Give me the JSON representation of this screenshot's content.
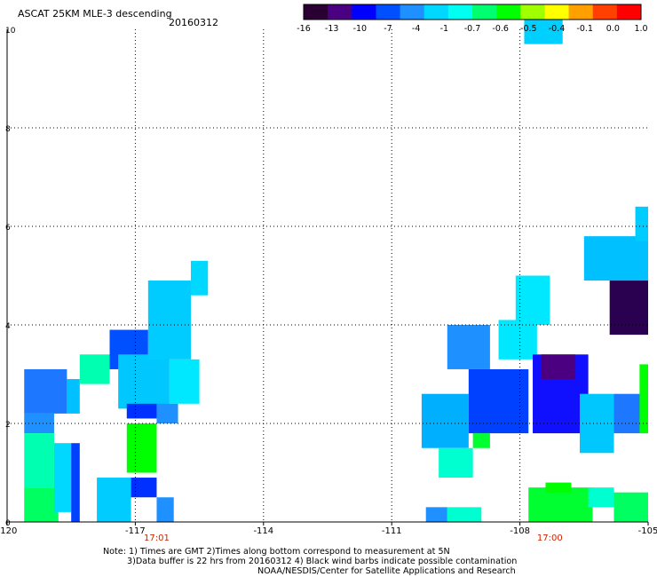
{
  "header": {
    "title": "ASCAT 25KM MLE-3 descending",
    "date": "20160312"
  },
  "colorbar": {
    "colors": [
      "#2a0033",
      "#4b0082",
      "#0000ff",
      "#0050ff",
      "#1e90ff",
      "#00d8ff",
      "#00fff0",
      "#00ff70",
      "#00ff00",
      "#a0ff00",
      "#ffff00",
      "#ffa000",
      "#ff4000",
      "#ff0000"
    ],
    "tick_labels": [
      "-16",
      "-13",
      "-10",
      "-7",
      "-4",
      "-1",
      "-0.7",
      "-0.6",
      "-0.5",
      "-0.4",
      "-0.1",
      "0.0",
      "1.0"
    ]
  },
  "chart_data": {
    "type": "heatmap",
    "title": "ASCAT 25KM MLE-3 descending",
    "x_axis": {
      "range": [
        -120,
        -105
      ],
      "ticks": [
        -120,
        -117,
        -114,
        -111,
        -108,
        -105
      ],
      "tick_labels": [
        "-120",
        "-117",
        "-114",
        "-111",
        "-108",
        "-105"
      ]
    },
    "y_axis": {
      "range": [
        0,
        10
      ],
      "ticks": [
        0,
        2,
        4,
        6,
        8,
        10
      ],
      "tick_labels": [
        "0",
        "2",
        "4",
        "6",
        "8",
        "10"
      ]
    },
    "grid": true,
    "time_labels": [
      {
        "x": -116.5,
        "text": "17:01"
      },
      {
        "x": -107.3,
        "text": "17:00"
      }
    ],
    "colorscale": [
      "-16",
      "-13",
      "-10",
      "-7",
      "-4",
      "-1",
      "-0.7",
      "-0.6",
      "-0.5",
      "-0.4",
      "-0.1",
      "0.0",
      "1.0"
    ],
    "cells": [
      {
        "lon": [
          -107.9,
          -107.0
        ],
        "lat": [
          9.7,
          10.3
        ],
        "color": "#00d0ff"
      },
      {
        "lon": [
          -119.6,
          -118.6
        ],
        "lat": [
          2.2,
          3.1
        ],
        "color": "#1e78ff"
      },
      {
        "lon": [
          -119.6,
          -118.9
        ],
        "lat": [
          1.8,
          2.2
        ],
        "color": "#1e90ff"
      },
      {
        "lon": [
          -118.6,
          -118.3
        ],
        "lat": [
          2.2,
          2.9
        ],
        "color": "#00c0ff"
      },
      {
        "lon": [
          -118.3,
          -117.6
        ],
        "lat": [
          2.8,
          3.4
        ],
        "color": "#00ffb0"
      },
      {
        "lon": [
          -117.6,
          -116.7
        ],
        "lat": [
          3.1,
          3.9
        ],
        "color": "#0050ff"
      },
      {
        "lon": [
          -117.4,
          -116.2
        ],
        "lat": [
          2.3,
          3.4
        ],
        "color": "#00c8ff"
      },
      {
        "lon": [
          -116.7,
          -115.7
        ],
        "lat": [
          3.3,
          4.9
        ],
        "color": "#00ccff"
      },
      {
        "lon": [
          -115.7,
          -115.3
        ],
        "lat": [
          4.6,
          5.3
        ],
        "color": "#00d8ff"
      },
      {
        "lon": [
          -116.2,
          -115.5
        ],
        "lat": [
          2.4,
          3.3
        ],
        "color": "#00e8ff"
      },
      {
        "lon": [
          -117.2,
          -116.5
        ],
        "lat": [
          2.1,
          2.4
        ],
        "color": "#0030ff"
      },
      {
        "lon": [
          -116.5,
          -116.0
        ],
        "lat": [
          2.0,
          2.4
        ],
        "color": "#1e90ff"
      },
      {
        "lon": [
          -117.2,
          -116.5
        ],
        "lat": [
          1.0,
          2.0
        ],
        "color": "#00ff00"
      },
      {
        "lon": [
          -119.6,
          -118.9
        ],
        "lat": [
          0.7,
          1.8
        ],
        "color": "#00ffb0"
      },
      {
        "lon": [
          -119.6,
          -118.8
        ],
        "lat": [
          0.0,
          0.7
        ],
        "color": "#00ff60"
      },
      {
        "lon": [
          -118.9,
          -118.5
        ],
        "lat": [
          0.2,
          1.6
        ],
        "color": "#00d8ff"
      },
      {
        "lon": [
          -118.5,
          -118.3
        ],
        "lat": [
          0.0,
          1.6
        ],
        "color": "#0040ff"
      },
      {
        "lon": [
          -117.9,
          -117.1
        ],
        "lat": [
          0.0,
          0.9
        ],
        "color": "#00ccff"
      },
      {
        "lon": [
          -117.1,
          -116.5
        ],
        "lat": [
          0.5,
          0.9
        ],
        "color": "#0030ff"
      },
      {
        "lon": [
          -116.5,
          -116.1
        ],
        "lat": [
          0.0,
          0.5
        ],
        "color": "#1e90ff"
      },
      {
        "lon": [
          -110.3,
          -109.2
        ],
        "lat": [
          1.5,
          2.6
        ],
        "color": "#00b0ff"
      },
      {
        "lon": [
          -109.9,
          -109.1
        ],
        "lat": [
          0.9,
          1.5
        ],
        "color": "#00ffd0"
      },
      {
        "lon": [
          -109.1,
          -108.7
        ],
        "lat": [
          1.5,
          1.8
        ],
        "color": "#00ff30"
      },
      {
        "lon": [
          -109.2,
          -107.8
        ],
        "lat": [
          1.8,
          3.1
        ],
        "color": "#0040ff"
      },
      {
        "lon": [
          -109.7,
          -108.7
        ],
        "lat": [
          3.1,
          4.0
        ],
        "color": "#1e90ff"
      },
      {
        "lon": [
          -108.5,
          -107.6
        ],
        "lat": [
          3.3,
          4.1
        ],
        "color": "#00e8ff"
      },
      {
        "lon": [
          -108.1,
          -107.3
        ],
        "lat": [
          4.0,
          5.0
        ],
        "color": "#00e8ff"
      },
      {
        "lon": [
          -107.7,
          -106.4
        ],
        "lat": [
          1.8,
          3.4
        ],
        "color": "#1010ff"
      },
      {
        "lon": [
          -107.5,
          -106.7
        ],
        "lat": [
          2.9,
          3.4
        ],
        "color": "#4b0082"
      },
      {
        "lon": [
          -106.6,
          -105.8
        ],
        "lat": [
          1.4,
          2.6
        ],
        "color": "#00c8ff"
      },
      {
        "lon": [
          -105.8,
          -105.0
        ],
        "lat": [
          1.8,
          2.6
        ],
        "color": "#1e78ff"
      },
      {
        "lon": [
          -105.2,
          -105.0
        ],
        "lat": [
          1.8,
          3.2
        ],
        "color": "#00ff00"
      },
      {
        "lon": [
          -105.9,
          -105.0
        ],
        "lat": [
          3.8,
          4.9
        ],
        "color": "#2a0050"
      },
      {
        "lon": [
          -106.5,
          -105.0
        ],
        "lat": [
          4.9,
          5.8
        ],
        "color": "#00c0ff"
      },
      {
        "lon": [
          -105.3,
          -105.0
        ],
        "lat": [
          5.7,
          6.4
        ],
        "color": "#00ccff"
      },
      {
        "lon": [
          -107.8,
          -106.3
        ],
        "lat": [
          0.0,
          0.7
        ],
        "color": "#00ff30"
      },
      {
        "lon": [
          -107.4,
          -106.8
        ],
        "lat": [
          0.6,
          0.8
        ],
        "color": "#00ff00"
      },
      {
        "lon": [
          -106.4,
          -105.8
        ],
        "lat": [
          0.3,
          0.7
        ],
        "color": "#00ffd0"
      },
      {
        "lon": [
          -105.8,
          -105.0
        ],
        "lat": [
          0.0,
          0.6
        ],
        "color": "#00ff60"
      },
      {
        "lon": [
          -109.7,
          -108.9
        ],
        "lat": [
          0.0,
          0.3
        ],
        "color": "#00ffd0"
      },
      {
        "lon": [
          -110.2,
          -109.7
        ],
        "lat": [
          0.0,
          0.3
        ],
        "color": "#1e90ff"
      }
    ]
  },
  "notes": {
    "line1": "Note: 1) Times are GMT 2)Times along bottom correspond to measurement at 5N",
    "line2": "3)Data buffer is 22 hrs from 20160312 4) Black wind barbs indicate possible contamination",
    "line3": "NOAA/NESDIS/Center for Satellite Applications and Research"
  }
}
